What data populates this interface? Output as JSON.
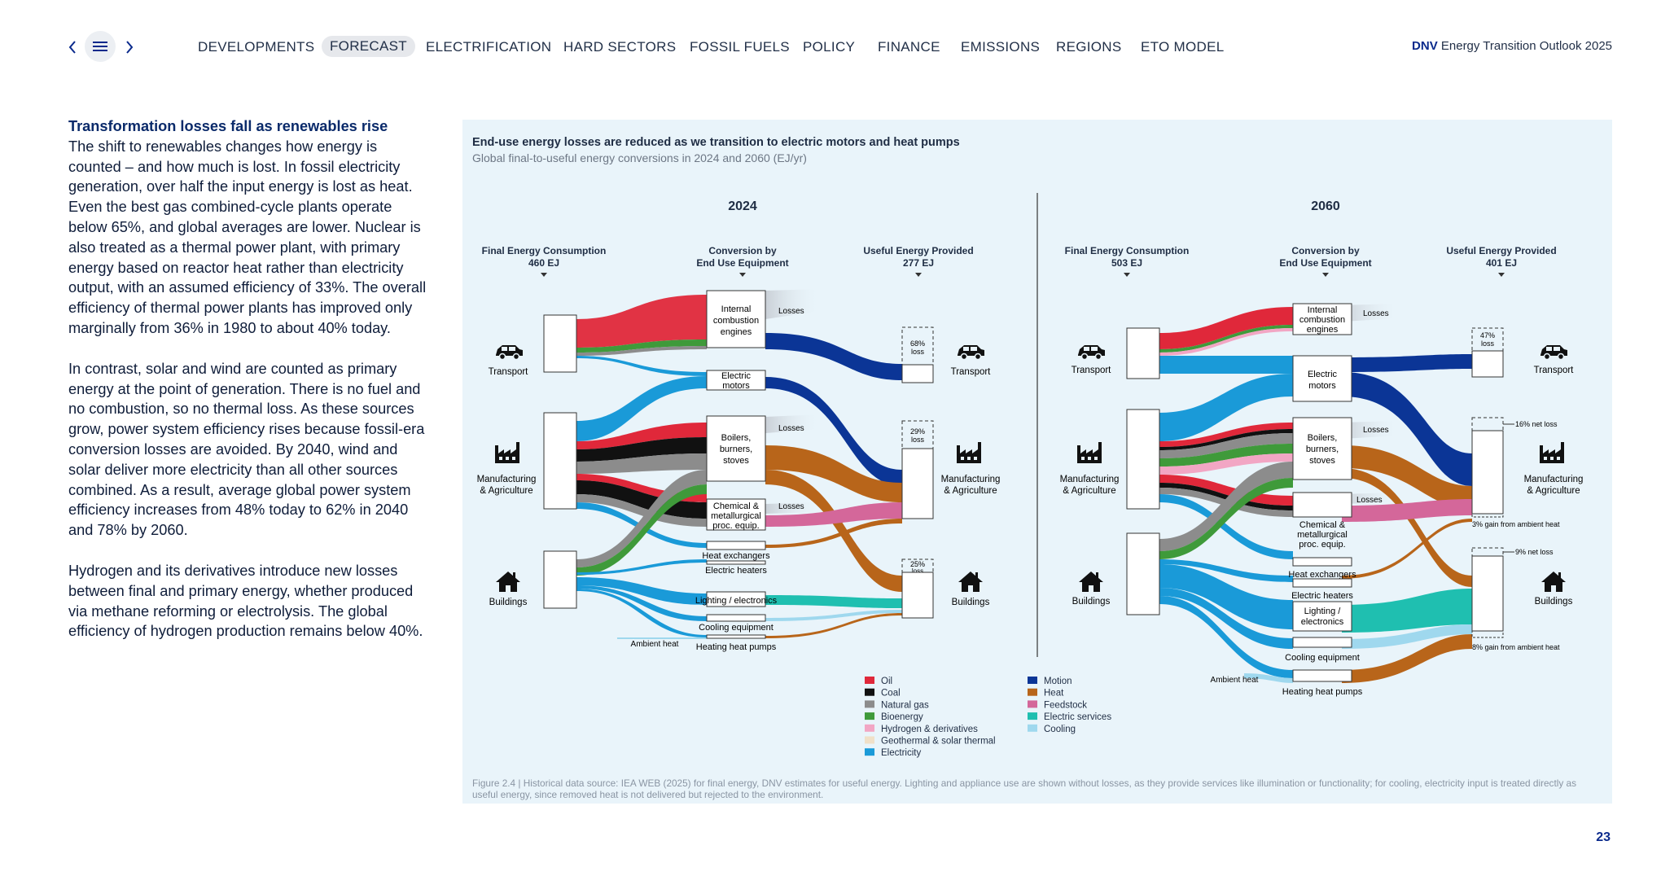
{
  "nav": {
    "items": [
      "DEVELOPMENTS",
      "FORECAST",
      "ELECTRIFICATION",
      "HARD SECTORS",
      "FOSSIL FUELS",
      "POLICY",
      "FINANCE",
      "EMISSIONS",
      "REGIONS",
      "ETO MODEL"
    ],
    "active": "FORECAST",
    "brand_strong": "DNV",
    "brand_text": "Energy Transition Outlook 2025"
  },
  "article": {
    "heading": "Transformation losses fall as renewables rise",
    "p1": "The shift to renewables changes how energy is counted – and how much is lost. In fossil electricity generation, over half the input energy is lost as heat. Even the best gas combined-cycle plants operate below 65%, and global averages are lower. Nuclear is also treated as a thermal power plant, with primary energy based on reactor heat rather than electricity output, with an assumed efficiency of 33%. The overall efficiency of thermal power plants has improved only marginally from 36% in 1980 to about 40% today.",
    "p2": "In contrast, solar and wind are counted as primary energy at the point of generation. There is no fuel and no combustion, so no thermal loss. As these sources grow, power system efficiency rises because fossil-era conversion losses are avoided. By 2040, wind and solar deliver more electricity than all other sources combined. As a result, average global power system efficiency increases from 48% today to 62% in 2040 and 78% by 2060.",
    "p3": "Hydrogen and its derivatives introduce new losses between final and primary energy, whether produced via methane reforming or electrolysis. The global efficiency of hydrogen production remains below 40%."
  },
  "figure": {
    "title": "End-use energy losses are reduced as we transition to electric motors and heat pumps",
    "subtitle": "Global final-to-useful energy conversions in 2024 and 2060 (EJ/yr)",
    "note": "Figure 2.4 | Historical data source: IEA WEB (2025) for final energy, DNV estimates for useful energy. Lighting and appliance use are shown without losses, as they provide services like illumination or functionality; for cooling, electricity input is treated directly as useful energy, since removed heat is not delivered but rejected to the environment.",
    "ambient_heat": "Ambient heat",
    "losses": "Losses",
    "y2024": {
      "year": "2024",
      "col1": "Final Energy Consumption",
      "col1_val": "460 EJ",
      "col2a": "Conversion by",
      "col2b": "End Use Equipment",
      "col3": "Useful Energy Provided",
      "col3_val": "277 EJ",
      "loss_transport": "68%",
      "loss_manuf": "29%",
      "loss_build": "25%"
    },
    "y2060": {
      "year": "2060",
      "col1": "Final Energy Consumption",
      "col1_val": "503 EJ",
      "col2a": "Conversion by",
      "col2b": "End Use Equipment",
      "col3": "Useful Energy Provided",
      "col3_val": "401 EJ",
      "loss_transport": "47%",
      "manuf_net_loss": "16% net loss",
      "manuf_gain": "3% gain from ambient heat",
      "build_net_loss": "9% net loss",
      "build_gain": "8% gain from ambient heat"
    },
    "sectors": {
      "transport": "Transport",
      "manuf1": "Manufacturing",
      "manuf2": "& Agriculture",
      "buildings": "Buildings"
    },
    "equipment": {
      "ice": [
        "Internal",
        "combustion",
        "engines"
      ],
      "motors": [
        "Electric",
        "motors"
      ],
      "boilers": [
        "Boilers,",
        "burners,",
        "stoves"
      ],
      "chem": [
        "Chemical &",
        "metallurgical",
        "proc. equip."
      ],
      "hx": "Heat exchangers",
      "eh": "Electric heaters",
      "light": "Lighting / electronics",
      "light2": [
        "Lighting /",
        "electronics"
      ],
      "cool": "Cooling equipment",
      "hp": "Heating heat pumps"
    },
    "legend_left": [
      {
        "label": "Oil",
        "color": "#e0283a"
      },
      {
        "label": "Coal",
        "color": "#111111"
      },
      {
        "label": "Natural gas",
        "color": "#8c8c8c"
      },
      {
        "label": "Bioenergy",
        "color": "#3f9a3a"
      },
      {
        "label": "Hydrogen & derivatives",
        "color": "#f2a6c4"
      },
      {
        "label": "Geothermal & solar thermal",
        "color": "#f0e0c8"
      },
      {
        "label": "Electricity",
        "color": "#1a9ad8"
      }
    ],
    "legend_right": [
      {
        "label": "Motion",
        "color": "#0b3596"
      },
      {
        "label": "Heat",
        "color": "#b8651a"
      },
      {
        "label": "Feedstock",
        "color": "#d4679a"
      },
      {
        "label": "Electric services",
        "color": "#1fbfb0"
      },
      {
        "label": "Cooling",
        "color": "#9fd8ee"
      }
    ]
  },
  "page_number": "23"
}
